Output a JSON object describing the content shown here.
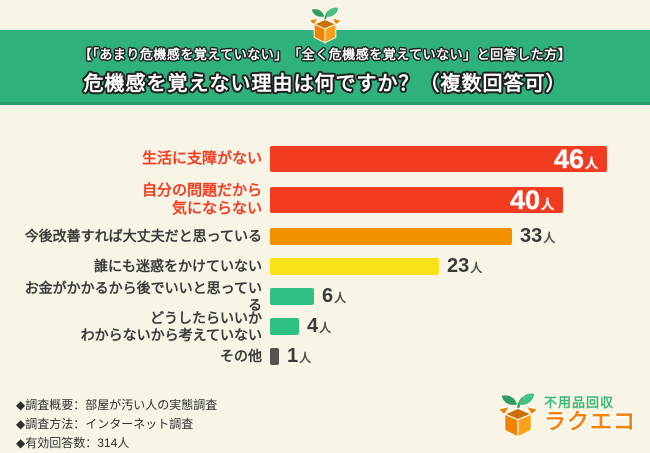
{
  "page": {
    "bg_color": "#f9f5e6"
  },
  "header": {
    "bg_color": "#2fb17d",
    "border_color": "#27996c",
    "subtitle": "【「あまり危機感を覚えていない」　「全く危機感を覚えていない」と回答した方】",
    "title": "危機感を覚えない理由は何ですか？（複数回答可）",
    "icon": "box-sprout-icon"
  },
  "chart_data": {
    "type": "bar",
    "orientation": "horizontal",
    "title": "危機感を覚えない理由は何ですか？（複数回答可）",
    "unit": "人",
    "xlim": [
      0,
      46
    ],
    "grid": false,
    "legend": false,
    "categories": [
      "生活に支障がない",
      "自分の問題だから\n気にならない",
      "今後改善すれば大丈夫だと思っている",
      "誰にも迷惑をかけていない",
      "お金がかかるから後でいいと思っている",
      "どうしたらいいか\nわからないから考えていない",
      "その他"
    ],
    "values": [
      46,
      40,
      33,
      23,
      6,
      4,
      1
    ],
    "bar_colors": [
      "#f23c21",
      "#f23c21",
      "#f29100",
      "#f8e317",
      "#2ec183",
      "#2ec183",
      "#575353"
    ],
    "label_colors": [
      "#f23c21",
      "#f23c21",
      "#3b3b3b",
      "#3b3b3b",
      "#3b3b3b",
      "#3b3b3b",
      "#3b3b3b"
    ],
    "value_inside": [
      true,
      true,
      false,
      false,
      false,
      false,
      false
    ],
    "emphasis": [
      true,
      true,
      false,
      false,
      false,
      false,
      false
    ]
  },
  "footer": {
    "notes": [
      "◆調査概要：部屋が汚い人の実態調査",
      "◆調査方法：インターネット調査",
      "◆有効回答数：314人"
    ],
    "logo": {
      "service_line": "不用品回収",
      "brand_line": "ラクエコ",
      "green": "#3cb878",
      "orange": "#f5820a"
    }
  }
}
